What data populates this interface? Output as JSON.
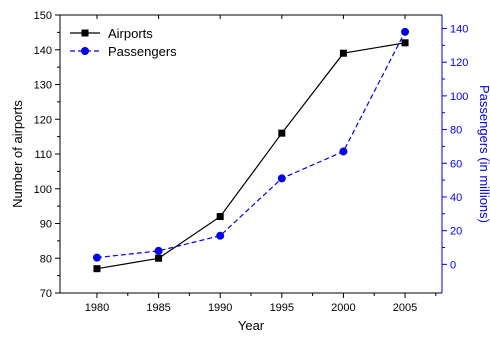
{
  "chart_data": {
    "type": "line",
    "x": [
      1980,
      1985,
      1990,
      1995,
      2000,
      2005
    ],
    "xlabel": "Year",
    "xlim": [
      1977,
      2008
    ],
    "x_ticks": [
      "1980",
      "1985",
      "1990",
      "1995",
      "2000",
      "2005"
    ],
    "y_left": {
      "label": "Number of airports",
      "lim": [
        70,
        150
      ],
      "ticks": [
        "70",
        "80",
        "90",
        "100",
        "110",
        "120",
        "130",
        "140",
        "150"
      ]
    },
    "y_right": {
      "label": "Passengers (in millions)",
      "lim": [
        -17,
        148
      ],
      "ticks": [
        "0",
        "20",
        "40",
        "60",
        "80",
        "100",
        "120",
        "140"
      ],
      "color": "#0000ee"
    },
    "series": [
      {
        "name": "Airports",
        "axis": "left",
        "values": [
          77,
          80,
          92,
          116,
          139,
          142
        ],
        "color": "#000000",
        "line_style": "solid",
        "marker": "square"
      },
      {
        "name": "Passengers",
        "axis": "right",
        "values": [
          4,
          8,
          17,
          51,
          67,
          138
        ],
        "color": "#0000ee",
        "line_style": "dashed",
        "marker": "circle"
      }
    ],
    "legend_position": "top-left",
    "grid": false
  }
}
